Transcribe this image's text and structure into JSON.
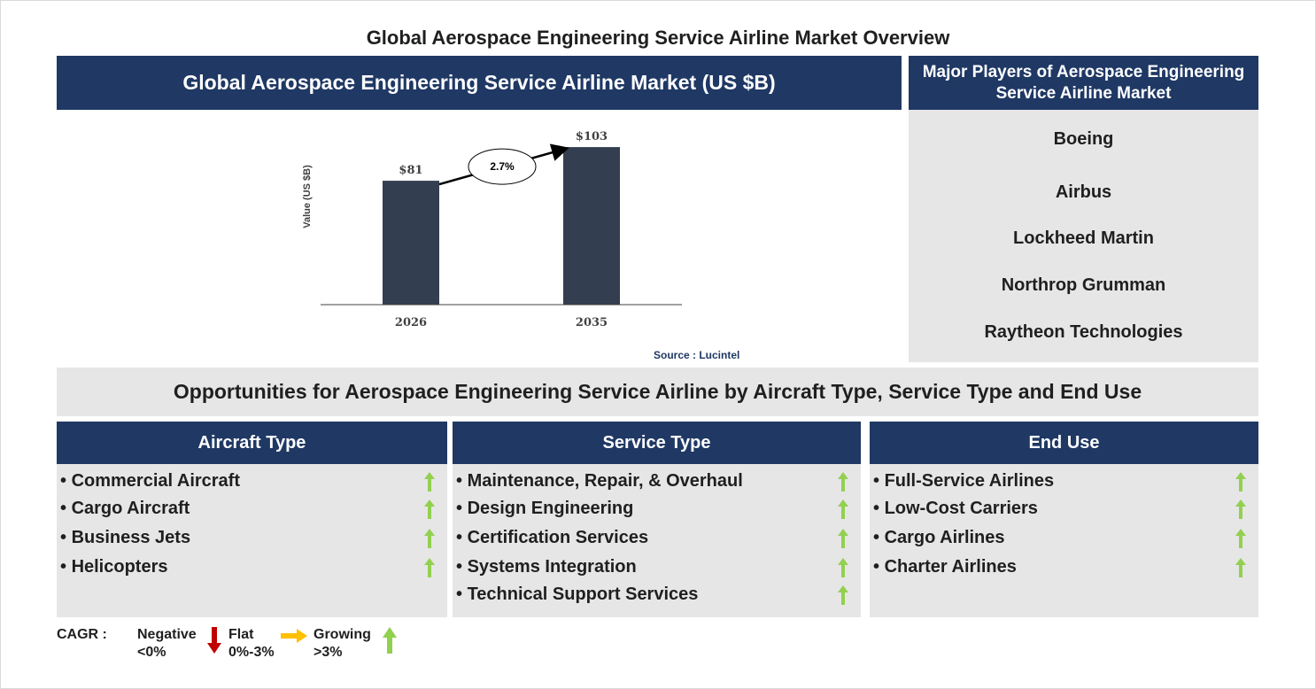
{
  "title": "Global Aerospace Engineering Service Airline Market Overview",
  "chart_header": "Global Aerospace Engineering Service Airline Market (US $B)",
  "players_header": "Major Players of Aerospace Engineering Service Airline Market",
  "players": [
    "Boeing",
    "Airbus",
    "Lockheed Martin",
    "Northrop Grumman",
    "Raytheon Technologies"
  ],
  "source": "Source : Lucintel",
  "chart_data": {
    "type": "bar",
    "categories": [
      "2026",
      "2035"
    ],
    "values": [
      81,
      103
    ],
    "value_labels": [
      "$81",
      "$103"
    ],
    "ylabel": "Value (US $B)",
    "title": "",
    "ylim": [
      0,
      110
    ],
    "annotation": "2.7%",
    "bar_color": "#333f50"
  },
  "opportunities_header": "Opportunities for Aerospace Engineering Service Airline by Aircraft Type, Service Type and End Use",
  "segments": [
    {
      "title": "Aircraft Type",
      "items": [
        "Commercial Aircraft",
        "Cargo Aircraft",
        "Business Jets",
        "Helicopters"
      ],
      "trends": [
        "growing",
        "growing",
        "growing",
        "growing"
      ]
    },
    {
      "title": "Service Type",
      "items": [
        "Maintenance, Repair, & Overhaul",
        "Design Engineering",
        "Certification Services",
        "Systems Integration",
        "Technical Support Services"
      ],
      "trends": [
        "growing",
        "growing",
        "growing",
        "growing",
        "growing"
      ]
    },
    {
      "title": "End Use",
      "items": [
        "Full-Service Airlines",
        "Low-Cost Carriers",
        "Cargo Airlines",
        "Charter Airlines"
      ],
      "trends": [
        "growing",
        "growing",
        "growing",
        "growing"
      ]
    }
  ],
  "legend": {
    "label": "CAGR :",
    "negative": "Negative",
    "negative_range": "<0%",
    "flat": "Flat",
    "flat_range": "0%-3%",
    "growing": "Growing",
    "growing_range": ">3%"
  },
  "colors": {
    "navy": "#1f3864",
    "panel_grey": "#e7e6e6",
    "up_arrow": "#92d050",
    "down_arrow": "#c00000",
    "flat_arrow": "#ffc000"
  }
}
